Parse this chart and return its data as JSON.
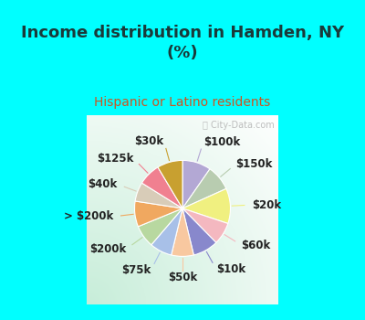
{
  "title": "Income distribution in Hamden, NY\n(%)",
  "subtitle": "Hispanic or Latino residents",
  "watermark": "ⓘ City-Data.com",
  "title_color": "#1a3a3a",
  "subtitle_color": "#cc5522",
  "watermark_color": "#aaaaaa",
  "bg_cyan": "#00FFFF",
  "slices": [
    {
      "label": "$100k",
      "value": 9,
      "color": "#b3a8d4"
    },
    {
      "label": "$150k",
      "value": 8,
      "color": "#b8ccb0"
    },
    {
      "label": "$20k",
      "value": 11,
      "color": "#f0f080"
    },
    {
      "label": "$60k",
      "value": 7,
      "color": "#f4b8c0"
    },
    {
      "label": "$10k",
      "value": 8,
      "color": "#8888cc"
    },
    {
      "label": "$50k",
      "value": 7,
      "color": "#f8c8a0"
    },
    {
      "label": "$75k",
      "value": 7,
      "color": "#a8c0e8"
    },
    {
      "label": "$200k",
      "value": 7,
      "color": "#b8d8a0"
    },
    {
      ">$200k_label": "> $200k",
      "label": "> $200k",
      "value": 8,
      "color": "#f0a860"
    },
    {
      "label": "$40k",
      "value": 6,
      "color": "#d8ccb8"
    },
    {
      "label": "$125k",
      "value": 7,
      "color": "#f08090"
    },
    {
      "label": "$30k",
      "value": 8,
      "color": "#c8a030"
    }
  ],
  "title_fontsize": 13,
  "subtitle_fontsize": 10,
  "label_fontsize": 8.5,
  "border_width": 8
}
